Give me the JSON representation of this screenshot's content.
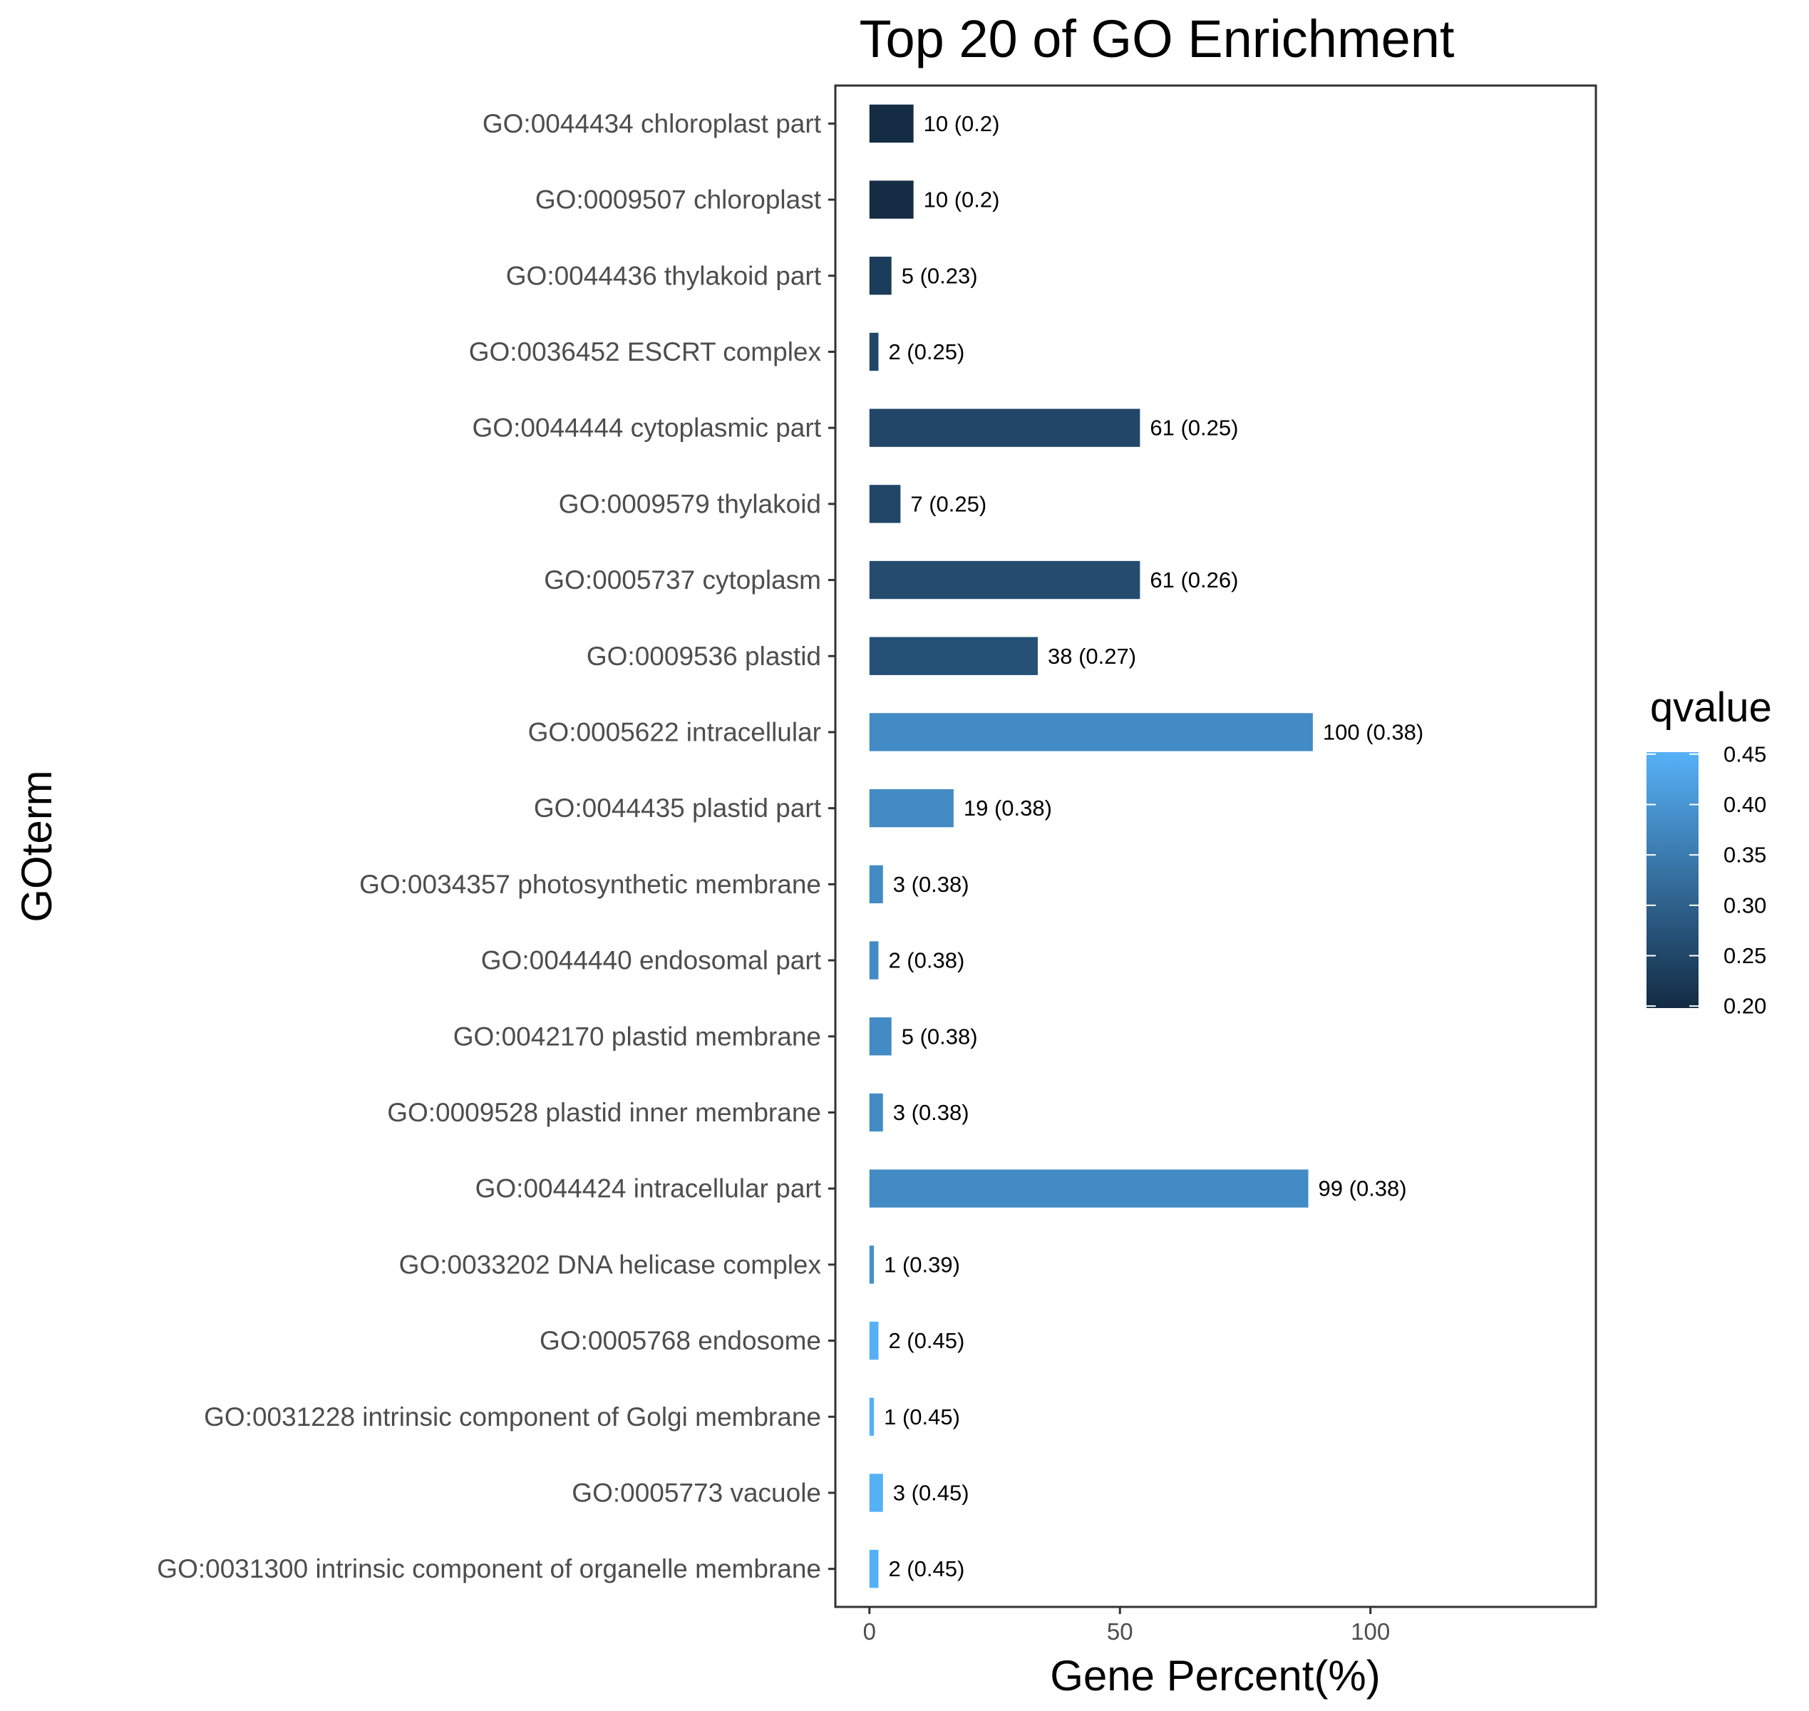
{
  "chart_data": {
    "type": "bar",
    "orientation": "horizontal",
    "title": "Top 20 of GO Enrichment",
    "xlabel": "Gene Percent(%)",
    "ylabel": "GOterm",
    "xlim": [
      -6.8,
      145
    ],
    "xticks": [
      "0",
      "50",
      "100"
    ],
    "xtick_values": [
      0,
      50,
      100
    ],
    "grid": false,
    "legend": {
      "title": "qvalue",
      "position": "right",
      "ticks": [
        "0.45",
        "0.40",
        "0.35",
        "0.30",
        "0.25",
        "0.20"
      ],
      "tick_values": [
        0.45,
        0.4,
        0.35,
        0.3,
        0.25,
        0.2
      ],
      "range": [
        0.198,
        0.452
      ],
      "low_color": "#132b43",
      "high_color": "#56b1f7"
    },
    "categories": [
      "GO:0044434 chloroplast part",
      "GO:0009507 chloroplast",
      "GO:0044436 thylakoid part",
      "GO:0036452 ESCRT complex",
      "GO:0044444 cytoplasmic part",
      "GO:0009579 thylakoid",
      "GO:0005737 cytoplasm",
      "GO:0009536 plastid",
      "GO:0005622 intracellular",
      "GO:0044435 plastid part",
      "GO:0034357 photosynthetic membrane",
      "GO:0044440 endosomal part",
      "GO:0042170 plastid membrane",
      "GO:0009528 plastid inner membrane",
      "GO:0044424 intracellular part",
      "GO:0033202 DNA helicase complex",
      "GO:0005768 endosome",
      "GO:0031228 intrinsic component of Golgi membrane",
      "GO:0005773 vacuole",
      "GO:0031300 intrinsic component of organelle membrane"
    ],
    "values": [
      8.8,
      8.8,
      4.4,
      1.8,
      54.0,
      6.2,
      54.0,
      33.6,
      88.5,
      16.8,
      2.7,
      1.8,
      4.4,
      2.7,
      87.6,
      0.9,
      1.8,
      0.9,
      2.7,
      1.8
    ],
    "counts": [
      10,
      10,
      5,
      2,
      61,
      7,
      61,
      38,
      100,
      19,
      3,
      2,
      5,
      3,
      99,
      1,
      2,
      1,
      3,
      2
    ],
    "qvalues": [
      0.2,
      0.2,
      0.23,
      0.25,
      0.25,
      0.25,
      0.26,
      0.27,
      0.38,
      0.38,
      0.38,
      0.38,
      0.38,
      0.38,
      0.38,
      0.39,
      0.45,
      0.45,
      0.45,
      0.45
    ],
    "bar_labels": [
      "10 (0.2)",
      "10 (0.2)",
      "5 (0.23)",
      "2 (0.25)",
      "61 (0.25)",
      "7 (0.25)",
      "61 (0.26)",
      "38 (0.27)",
      "100 (0.38)",
      "19 (0.38)",
      "3 (0.38)",
      "2 (0.38)",
      "5 (0.38)",
      "3 (0.38)",
      "99 (0.38)",
      "1 (0.39)",
      "2 (0.45)",
      "1 (0.45)",
      "3 (0.45)",
      "2 (0.45)"
    ]
  }
}
